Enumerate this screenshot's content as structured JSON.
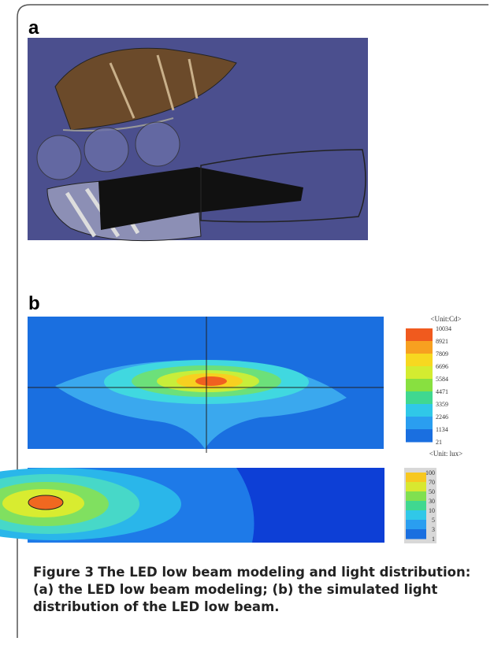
{
  "figure": {
    "panels": {
      "a": {
        "label": "a"
      },
      "b": {
        "label": "b",
        "legends": [
          {
            "unit": "<Unit:Cd>",
            "labels": [
              "10034",
              "8921",
              "7809",
              "6696",
              "5584",
              "4471",
              "3359",
              "2246",
              "1134",
              "21"
            ]
          },
          {
            "unit": "<Unit: lux>",
            "labels": [
              "100",
              "70",
              "50",
              "30",
              "10",
              "5",
              "3",
              "1"
            ]
          }
        ]
      }
    },
    "caption": {
      "label": "Figure 3",
      "text": "The LED low beam modeling and light distribution: (a) the LED low beam modeling; (b) the simulated light distribution of the LED low beam."
    }
  }
}
